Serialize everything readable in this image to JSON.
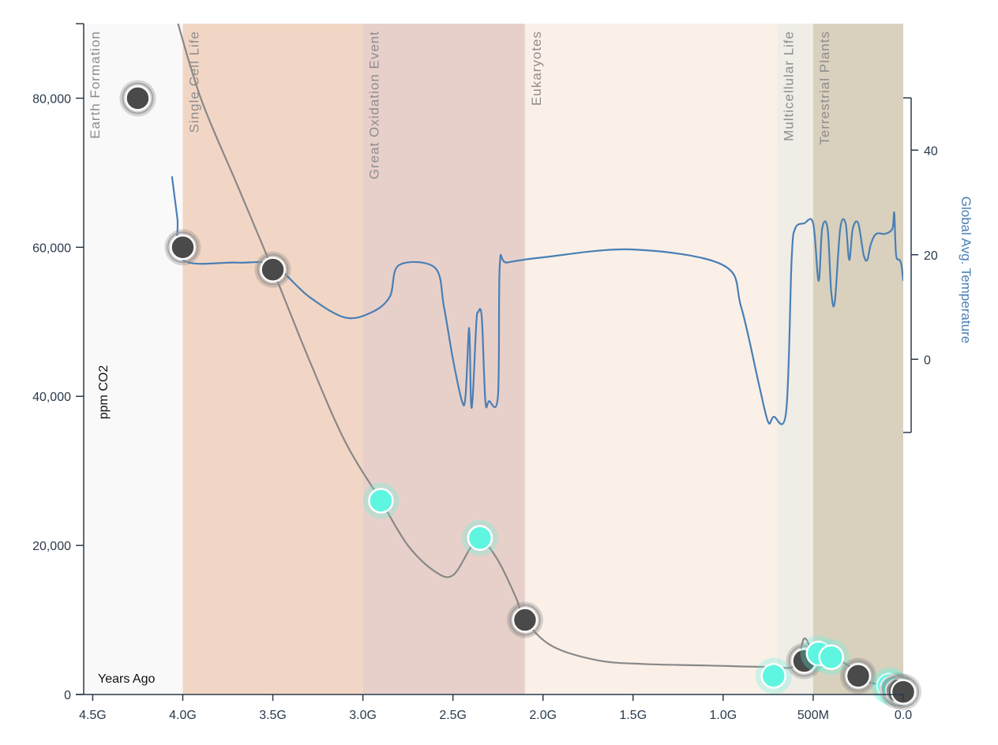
{
  "chart_data": {
    "type": "line",
    "xlabel": "Years Ago",
    "ylabel": "ppm CO2",
    "y2label": "Global Avg. Temperature",
    "xlim": [
      4.55,
      0
    ],
    "ylim": [
      0,
      90000
    ],
    "y2lim": [
      -14,
      50
    ],
    "x_ticks": [
      {
        "value": 4.5,
        "label": "4.5G"
      },
      {
        "value": 4.0,
        "label": "4.0G"
      },
      {
        "value": 3.5,
        "label": "3.5G"
      },
      {
        "value": 3.0,
        "label": "3.0G"
      },
      {
        "value": 2.5,
        "label": "2.5G"
      },
      {
        "value": 2.0,
        "label": "2.0G"
      },
      {
        "value": 1.5,
        "label": "1.5G"
      },
      {
        "value": 1.0,
        "label": "1.0G"
      },
      {
        "value": 0.5,
        "label": "500M"
      },
      {
        "value": 0.0,
        "label": "0.0"
      }
    ],
    "y_ticks": [
      {
        "value": 0,
        "label": "0"
      },
      {
        "value": 20000,
        "label": "20,000"
      },
      {
        "value": 40000,
        "label": "40,000"
      },
      {
        "value": 60000,
        "label": "60,000"
      },
      {
        "value": 80000,
        "label": "80,000"
      }
    ],
    "y2_ticks": [
      {
        "value": 0,
        "label": "0"
      },
      {
        "value": 20,
        "label": "20"
      },
      {
        "value": 40,
        "label": "40"
      }
    ],
    "eras": [
      {
        "label": "Earth Formation",
        "start": 4.55,
        "end": 4.0,
        "color": "#f9f9f9"
      },
      {
        "label": "Single Cell Life",
        "start": 4.0,
        "end": 3.0,
        "color": "#f2d6c5"
      },
      {
        "label": "Great Oxidation Event",
        "start": 3.0,
        "end": 2.1,
        "color": "#e8d0ca"
      },
      {
        "label": "Eukaryotes",
        "start": 2.1,
        "end": 0.7,
        "color": "#fbf0e8"
      },
      {
        "label": "Multicellular Life",
        "start": 0.7,
        "end": 0.5,
        "color": "#f0ece6"
      },
      {
        "label": "Terrestrial Plants",
        "start": 0.5,
        "end": 0.0,
        "color": "#d9d1be"
      }
    ],
    "series": [
      {
        "axis": "left",
        "color": "#888888",
        "x": [
          4.05,
          3.9,
          3.7,
          3.5,
          3.3,
          3.1,
          2.9,
          2.75,
          2.6,
          2.5,
          2.4,
          2.35,
          2.25,
          2.15,
          2.1,
          1.95,
          1.7,
          1.45,
          1.1,
          0.75,
          0.6,
          0.55,
          0.5,
          0.45,
          0.4,
          0.3,
          0.25,
          0.2,
          0.1,
          0.05,
          0.0
        ],
        "y": [
          92000,
          80000,
          68500,
          57000,
          45000,
          34000,
          26000,
          20000,
          16500,
          16000,
          19800,
          21000,
          18000,
          13000,
          10000,
          6500,
          4600,
          4100,
          3900,
          3700,
          3900,
          7500,
          5500,
          4600,
          5000,
          3800,
          2500,
          1700,
          1200,
          800,
          400
        ]
      },
      {
        "axis": "right",
        "color": "#4a7fb5",
        "x": [
          4.06,
          4.03,
          4.0,
          3.7,
          3.5,
          3.3,
          3.1,
          2.95,
          2.85,
          2.8,
          2.6,
          2.55,
          2.5,
          2.45,
          2.43,
          2.41,
          2.4,
          2.39,
          2.37,
          2.36,
          2.34,
          2.32,
          2.3,
          2.25,
          2.24,
          2.2,
          2.0,
          1.5,
          1.0,
          0.9,
          0.8,
          0.75,
          0.72,
          0.65,
          0.62,
          0.6,
          0.55,
          0.5,
          0.47,
          0.45,
          0.42,
          0.4,
          0.38,
          0.35,
          0.32,
          0.3,
          0.28,
          0.25,
          0.22,
          0.2,
          0.18,
          0.15,
          0.1,
          0.06,
          0.05,
          0.04,
          0.02,
          0.01,
          0.0
        ],
        "y": [
          35,
          27,
          19,
          18.5,
          18,
          12,
          8,
          9,
          12,
          18,
          17.5,
          10,
          0,
          -8,
          -7,
          6,
          -8,
          -7,
          7,
          9,
          8,
          -8,
          -8,
          -7,
          18,
          18.5,
          19.5,
          21,
          18,
          10,
          -5,
          -12,
          -11,
          -10,
          19,
          25,
          26,
          26,
          15,
          25,
          25,
          13,
          11,
          25,
          26,
          19,
          25,
          26,
          20,
          19,
          22,
          24,
          24,
          25,
          28,
          20,
          19,
          18,
          15
        ]
      }
    ],
    "markers": [
      {
        "x": 4.25,
        "y": 80000,
        "kind": "dark"
      },
      {
        "x": 4.0,
        "y": 60000,
        "kind": "dark"
      },
      {
        "x": 3.5,
        "y": 57000,
        "kind": "dark"
      },
      {
        "x": 2.9,
        "y": 26000,
        "kind": "cyan"
      },
      {
        "x": 2.35,
        "y": 21000,
        "kind": "cyan"
      },
      {
        "x": 2.1,
        "y": 10000,
        "kind": "dark"
      },
      {
        "x": 0.72,
        "y": 2500,
        "kind": "cyan"
      },
      {
        "x": 0.55,
        "y": 4500,
        "kind": "dark"
      },
      {
        "x": 0.47,
        "y": 5500,
        "kind": "cyan"
      },
      {
        "x": 0.4,
        "y": 5000,
        "kind": "cyan"
      },
      {
        "x": 0.25,
        "y": 2500,
        "kind": "dark"
      },
      {
        "x": 0.08,
        "y": 1200,
        "kind": "cyan"
      },
      {
        "x": 0.06,
        "y": 900,
        "kind": "cyan"
      },
      {
        "x": 0.03,
        "y": 500,
        "kind": "dark"
      },
      {
        "x": 0.0,
        "y": 350,
        "kind": "dark"
      }
    ],
    "colors": {
      "dark": "#4a4a4a",
      "cyan": "#5ef6e0",
      "axis": "#2a3a4c",
      "temp": "#4a7fb5",
      "co2": "#888888"
    }
  }
}
